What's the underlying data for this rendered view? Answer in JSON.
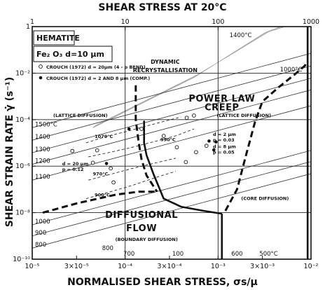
{
  "chart_data": {
    "type": "line",
    "material": "HEMATITE",
    "formula": "Fe₂ O₃  d=10 μm",
    "top_xlabel": "SHEAR STRESS AT 20°C",
    "xlabel": "NORMALISED SHEAR STRESS, σs/μ",
    "ylabel": "SHEAR STRAIN RATE  γ̇ (s⁻¹)",
    "x_scale": "log",
    "y_scale": "log",
    "xlim": [
      1e-05,
      0.01
    ],
    "ylim": [
      1e-10,
      1
    ],
    "grid": true,
    "x_ticks": [
      {
        "value": 1e-05,
        "label": "10⁻⁵"
      },
      {
        "value": 3e-05,
        "label": "3×10⁻⁵"
      },
      {
        "value": 0.0001,
        "label": "10⁻⁴"
      },
      {
        "value": 0.0003,
        "label": "3×10⁻⁴"
      },
      {
        "value": 0.001,
        "label": "10⁻³"
      },
      {
        "value": 0.003,
        "label": "3×10⁻³"
      },
      {
        "value": 0.01,
        "label": "10⁻²"
      }
    ],
    "top_ticks": [
      {
        "value": 1e-05,
        "label": "1"
      },
      {
        "value": 0.0001,
        "label": "10"
      },
      {
        "value": 0.001,
        "label": "100"
      },
      {
        "value": 0.01,
        "label": "1000"
      }
    ],
    "y_ticks": [
      {
        "value": 1,
        "label": "1"
      },
      {
        "value": 0.01,
        "label": "10⁻²"
      },
      {
        "value": 0.0001,
        "label": "10⁻⁴"
      },
      {
        "value": 1e-06,
        "label": "10⁻⁶"
      },
      {
        "value": 1e-08,
        "label": "10⁻⁸"
      },
      {
        "value": 1e-10,
        "label": "10⁻¹⁰"
      }
    ],
    "region_labels": [
      {
        "text": "DYNAMIC",
        "x": 0.00027,
        "y": 0.025
      },
      {
        "text": "RECRYSTALLISATION",
        "x": 0.00027,
        "y": 0.011
      },
      {
        "text": "POWER LAW",
        "x": 0.0011,
        "y": 0.0006
      },
      {
        "text": "CREEP",
        "x": 0.0011,
        "y": 0.00025
      },
      {
        "text": "DIFFUSIONAL",
        "x": 0.00015,
        "y": 6e-09
      },
      {
        "text": "FLOW",
        "x": 0.00015,
        "y": 1.6e-09
      }
    ],
    "mechanism_labels": [
      {
        "text": "(LATTICE DIFFUSION)",
        "x": 3.3e-05,
        "y": 0.00013
      },
      {
        "text": "(LATTICE DIFFUSION)",
        "x": 0.0019,
        "y": 0.00013
      },
      {
        "text": "(CORE DIFFUSION)",
        "x": 0.0032,
        "y": 3.5e-08
      },
      {
        "text": "(BOUNDARY DIFFUSION)",
        "x": 0.00017,
        "y": 6e-10
      }
    ],
    "legend": [
      {
        "marker": "open-circle",
        "text": "CROUCH (1972) d = 20μm  (4 - p BEND)"
      },
      {
        "marker": "filled-circle",
        "text": "CROUCH (1972) d = 2 AND 8 μm (COMP.)"
      }
    ],
    "grain_annotations": [
      {
        "lines": [
          "d = 2 μm",
          "p = 0.03"
        ],
        "x": 0.00088,
        "y": 2e-05
      },
      {
        "lines": [
          "d = 8 μm",
          "p = 0.05"
        ],
        "x": 0.00088,
        "y": 6e-06
      },
      {
        "lines": [
          "d = 20 μm",
          "p = 0.12"
        ],
        "x": 2.1e-05,
        "y": 1.1e-06
      }
    ],
    "isotherms": [
      {
        "label": "1500°C",
        "y_at_xmin": 4.5e-05
      },
      {
        "label": "1400",
        "y_at_xmin": 1.3e-05
      },
      {
        "label": "1300",
        "y_at_xmin": 3.8e-06
      },
      {
        "label": "1200",
        "y_at_xmin": 1.2e-06
      },
      {
        "label": "1100",
        "y_at_xmin": 2.5e-07
      },
      {
        "label": "1000",
        "y_at_xmin": 3e-09
      },
      {
        "label": "900",
        "y_at_xmin": 1e-09
      },
      {
        "label": "800",
        "y_at_xmin": 3e-10
      }
    ],
    "isotherm_edge_labels": [
      {
        "label": "800",
        "x": 6.5e-05,
        "y": 2.5e-10
      },
      {
        "label": "700",
        "x": 0.00011,
        "y": 1.4e-10
      },
      {
        "label": "100",
        "x": 0.00037,
        "y": 1.4e-10
      },
      {
        "label": "600",
        "x": 0.0016,
        "y": 1.4e-10
      },
      {
        "label": "500°C",
        "x": 0.0035,
        "y": 1.4e-10
      },
      {
        "label": "1000°C",
        "x": 0.0061,
        "y": 0.012
      },
      {
        "label": "1400°C",
        "x": 0.00175,
        "y": 0.35
      }
    ],
    "experimental_curves": [
      {
        "label": "1070°C",
        "label_x": 4.7e-05,
        "label_y": 1.6e-05,
        "points": [
          [
            3.8e-05,
            1e-05
          ],
          [
            6e-05,
            1.8e-05
          ],
          [
            0.0001,
            3e-05
          ],
          [
            0.00016,
            5e-05
          ],
          [
            0.00025,
            8e-05
          ],
          [
            0.0004,
            0.00013
          ]
        ]
      },
      {
        "label": "990°C",
        "label_x": 0.00024,
        "label_y": 1.2e-05,
        "points": [
          [
            4e-05,
            2.5e-06
          ],
          [
            7e-05,
            4e-06
          ],
          [
            0.00012,
            6.5e-06
          ],
          [
            0.0002,
            1.1e-05
          ],
          [
            0.00035,
            2e-05
          ],
          [
            0.00055,
            4e-05
          ]
        ]
      },
      {
        "label": "970°C",
        "label_x": 4.5e-05,
        "label_y": 4e-07,
        "points": [
          [
            4e-05,
            2.5e-07
          ],
          [
            7e-05,
            4.5e-07
          ],
          [
            0.00012,
            8e-07
          ],
          [
            0.0002,
            1.3e-06
          ],
          [
            0.00035,
            2.2e-06
          ]
        ]
      },
      {
        "label": "900°C",
        "label_x": 4.7e-05,
        "label_y": 5e-08,
        "points": [
          [
            3.8e-05,
            4e-08
          ],
          [
            7e-05,
            8e-08
          ],
          [
            0.00012,
            1.5e-07
          ],
          [
            0.0002,
            3e-07
          ],
          [
            0.00035,
            6e-07
          ]
        ]
      }
    ],
    "data_points": {
      "open": [
        [
          2.7e-05,
          4.5e-06
        ],
        [
          5e-05,
          4.8e-06
        ],
        [
          4.5e-05,
          1.4e-06
        ],
        [
          7e-05,
          8e-07
        ],
        [
          7.5e-05,
          2e-07
        ],
        [
          0.00015,
          4e-05
        ],
        [
          0.00026,
          2e-05
        ],
        [
          0.00036,
          6.5e-06
        ],
        [
          0.00045,
          1.5e-06
        ],
        [
          0.00058,
          4e-06
        ],
        [
          0.00075,
          7.5e-06
        ],
        [
          0.00046,
          0.00012
        ],
        [
          0.00055,
          0.00015
        ]
      ],
      "filled": [
        [
          6.3e-05,
          1.3e-06
        ],
        [
          0.00011,
          4e-05
        ],
        [
          0.00095,
          1.1e-05
        ],
        [
          0.0009,
          5e-06
        ],
        [
          0.0008,
          1.2e-05
        ]
      ]
    },
    "field_boundaries": [
      {
        "style": "solid",
        "points": [
          [
            0.00016,
            9e-05
          ],
          [
            0.00016,
            1e-05
          ],
          [
            0.00017,
            3e-06
          ],
          [
            0.0002,
            5e-07
          ],
          [
            0.00026,
            4e-08
          ],
          [
            0.0004,
            1.8e-08
          ],
          [
            0.0007,
            1.2e-08
          ],
          [
            0.0011,
            9e-09
          ]
        ]
      },
      {
        "style": "solid",
        "points": [
          [
            0.0011,
            9e-09
          ],
          [
            0.0011,
            1e-10
          ]
        ]
      },
      {
        "style": "solid",
        "points": [
          [
            0.0092,
            1
          ],
          [
            0.0092,
            1e-10
          ]
        ]
      },
      {
        "style": "dashed",
        "points": [
          [
            0.00013,
            0.003
          ],
          [
            0.00013,
            0.0001
          ],
          [
            0.00014,
            1e-05
          ],
          [
            0.00015,
            2e-06
          ],
          [
            0.00017,
            4e-07
          ],
          [
            0.00022,
            8e-08
          ]
        ]
      },
      {
        "style": "dashed",
        "points": [
          [
            1.3e-05,
            1e-08
          ],
          [
            3e-05,
            2.5e-08
          ],
          [
            8e-05,
            6e-08
          ],
          [
            0.00014,
            8e-08
          ],
          [
            0.00022,
            8e-08
          ]
        ]
      },
      {
        "style": "dashed",
        "points": [
          [
            0.0012,
            1.2e-08
          ],
          [
            0.0016,
            1e-07
          ],
          [
            0.002,
            3e-06
          ],
          [
            0.0025,
            8e-05
          ],
          [
            0.003,
            0.0006
          ],
          [
            0.0045,
            0.0025
          ],
          [
            0.0065,
            0.008
          ],
          [
            0.0085,
            0.02
          ],
          [
            0.0092,
            0.03
          ]
        ]
      }
    ],
    "recrystallisation_band": [
      [
        4.8e-05,
        5.6e-05
      ],
      [
        0.0006,
        0.0085
      ],
      [
        0.0035,
        0.6
      ],
      [
        0.0053,
        1
      ],
      [
        0.0047,
        1
      ],
      [
        0.0032,
        0.55
      ],
      [
        0.00055,
        0.0065
      ],
      [
        4.5e-05,
        4.5e-05
      ]
    ]
  }
}
